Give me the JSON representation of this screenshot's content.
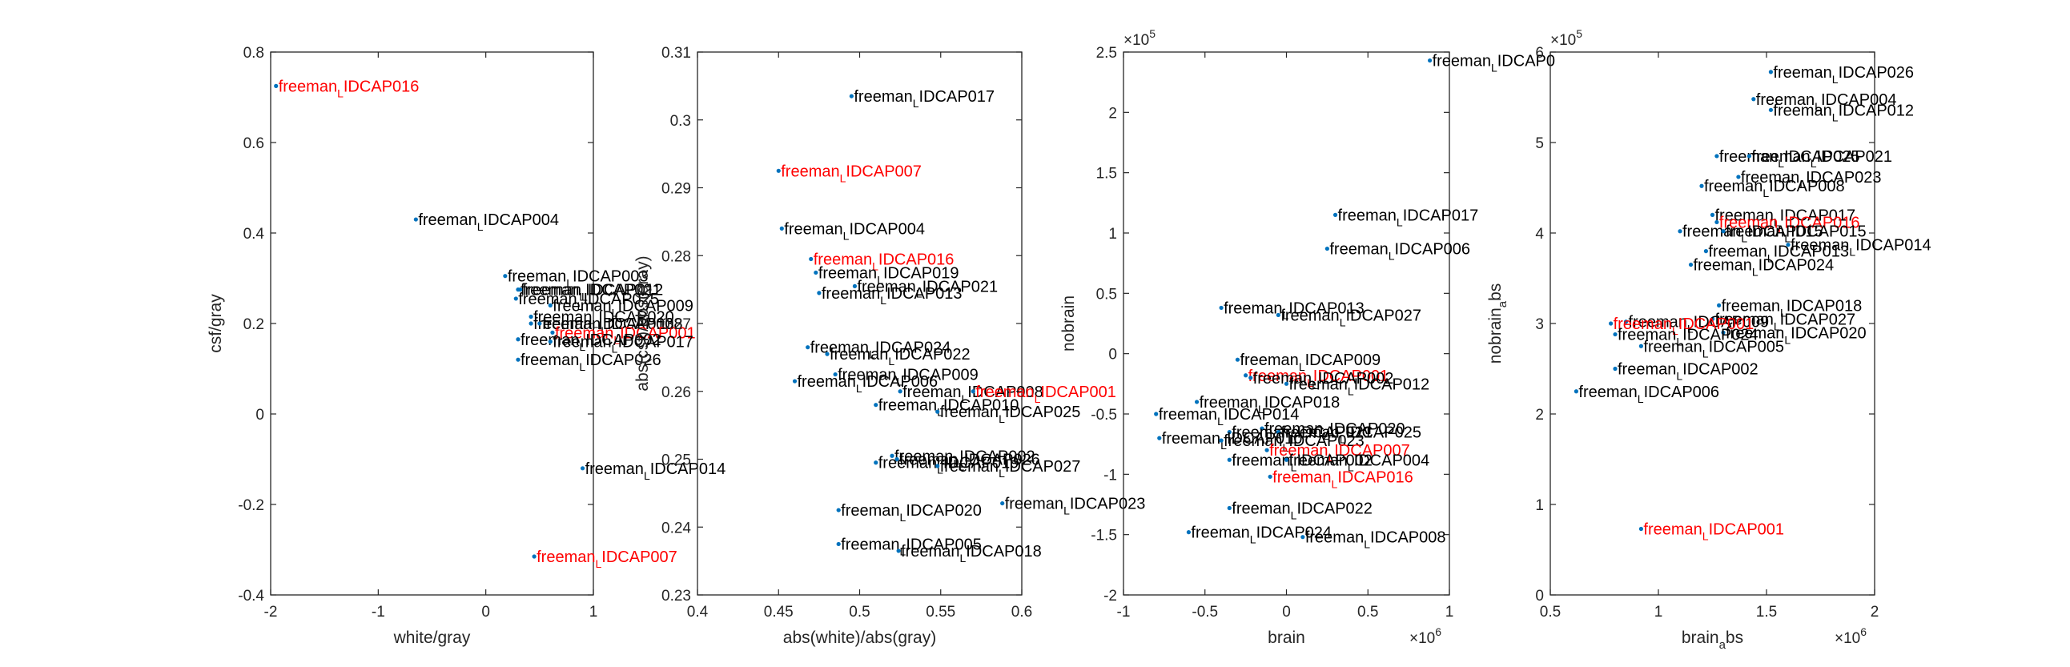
{
  "figure": {
    "panels": 4
  },
  "chart_data": [
    {
      "type": "scatter",
      "xlabel": "white/gray",
      "ylabel": "csf/gray",
      "xlim": [
        -2,
        1
      ],
      "ylim": [
        -0.4,
        0.8
      ],
      "xticks": [
        "-2",
        "-1",
        "0",
        "1"
      ],
      "yticks": [
        "-0.4",
        "-0.2",
        "0",
        "0.2",
        "0.4",
        "0.6",
        "0.8"
      ],
      "grid": false,
      "points": [
        {
          "x": -1.95,
          "y": 0.725,
          "label": "IDCAP016",
          "color": "#ff0000"
        },
        {
          "x": -0.65,
          "y": 0.43,
          "label": "IDCAP004",
          "color": "#000000"
        },
        {
          "x": 0.18,
          "y": 0.305,
          "label": "IDCAP003",
          "color": "#000000"
        },
        {
          "x": 0.3,
          "y": 0.275,
          "label": "IDCAP021",
          "color": "#000000"
        },
        {
          "x": 0.32,
          "y": 0.275,
          "label": "IDCAP012",
          "color": "#000000"
        },
        {
          "x": 0.28,
          "y": 0.255,
          "label": "IDCAP025",
          "color": "#000000"
        },
        {
          "x": 0.6,
          "y": 0.24,
          "label": "IDCAP009",
          "color": "#000000"
        },
        {
          "x": 0.42,
          "y": 0.215,
          "label": "IDCAP020",
          "color": "#000000"
        },
        {
          "x": 0.42,
          "y": 0.2,
          "label": "IDCAP013",
          "color": "#000000"
        },
        {
          "x": 0.5,
          "y": 0.2,
          "label": "IDCAP008",
          "color": "#000000"
        },
        {
          "x": 0.62,
          "y": 0.18,
          "label": "IDCAP001",
          "color": "#ff0000"
        },
        {
          "x": 0.3,
          "y": 0.165,
          "label": "IDCAP002",
          "color": "#000000"
        },
        {
          "x": 0.6,
          "y": 0.16,
          "label": "IDCAP017",
          "color": "#000000"
        },
        {
          "x": 0.3,
          "y": 0.12,
          "label": "IDCAP026",
          "color": "#000000"
        },
        {
          "x": 0.9,
          "y": -0.12,
          "label": "IDCAP014",
          "color": "#000000"
        },
        {
          "x": 0.45,
          "y": -0.315,
          "label": "IDCAP007",
          "color": "#ff0000"
        }
      ]
    },
    {
      "type": "scatter",
      "xlabel": "abs(white)/abs(gray)",
      "ylabel": "abs(csf)/abs(gray)",
      "xlim": [
        0.4,
        0.6
      ],
      "ylim": [
        0.23,
        0.31
      ],
      "xticks": [
        "0.4",
        "0.45",
        "0.5",
        "0.55",
        "0.6"
      ],
      "yticks": [
        "0.23",
        "0.24",
        "0.25",
        "0.26",
        "0.27",
        "0.28",
        "0.29",
        "0.3",
        "0.31"
      ],
      "grid": false,
      "points": [
        {
          "x": 0.495,
          "y": 0.3035,
          "label": "IDCAP017",
          "color": "#000000"
        },
        {
          "x": 0.45,
          "y": 0.2925,
          "label": "IDCAP007",
          "color": "#ff0000"
        },
        {
          "x": 0.452,
          "y": 0.284,
          "label": "IDCAP004",
          "color": "#000000"
        },
        {
          "x": 0.47,
          "y": 0.2795,
          "label": "IDCAP016",
          "color": "#ff0000"
        },
        {
          "x": 0.473,
          "y": 0.2775,
          "label": "IDCAP019",
          "color": "#000000"
        },
        {
          "x": 0.497,
          "y": 0.2755,
          "label": "IDCAP021",
          "color": "#000000"
        },
        {
          "x": 0.475,
          "y": 0.2745,
          "label": "IDCAP013",
          "color": "#000000"
        },
        {
          "x": 0.468,
          "y": 0.2665,
          "label": "IDCAP024",
          "color": "#000000"
        },
        {
          "x": 0.48,
          "y": 0.2655,
          "label": "IDCAP022",
          "color": "#000000"
        },
        {
          "x": 0.485,
          "y": 0.2625,
          "label": "IDCAP009",
          "color": "#000000"
        },
        {
          "x": 0.46,
          "y": 0.2615,
          "label": "IDCAP006",
          "color": "#000000"
        },
        {
          "x": 0.525,
          "y": 0.26,
          "label": "IDCAP008",
          "color": "#000000"
        },
        {
          "x": 0.57,
          "y": 0.26,
          "label": "IDCAP001",
          "color": "#ff0000"
        },
        {
          "x": 0.51,
          "y": 0.258,
          "label": "IDCAP010",
          "color": "#000000"
        },
        {
          "x": 0.548,
          "y": 0.257,
          "label": "IDCAP025",
          "color": "#000000"
        },
        {
          "x": 0.52,
          "y": 0.2505,
          "label": "IDCAP002",
          "color": "#000000"
        },
        {
          "x": 0.523,
          "y": 0.25,
          "label": "IDCAP026",
          "color": "#000000"
        },
        {
          "x": 0.51,
          "y": 0.2495,
          "label": "IDCAP019",
          "color": "#000000"
        },
        {
          "x": 0.548,
          "y": 0.249,
          "label": "IDCAP027",
          "color": "#000000"
        },
        {
          "x": 0.588,
          "y": 0.2435,
          "label": "IDCAP023",
          "color": "#000000"
        },
        {
          "x": 0.487,
          "y": 0.2425,
          "label": "IDCAP020",
          "color": "#000000"
        },
        {
          "x": 0.487,
          "y": 0.2375,
          "label": "IDCAP005",
          "color": "#000000"
        },
        {
          "x": 0.524,
          "y": 0.2365,
          "label": "IDCAP018",
          "color": "#000000"
        }
      ]
    },
    {
      "type": "scatter",
      "xlabel": "brain",
      "ylabel": "nobrain",
      "xlim": [
        -1,
        1
      ],
      "ylim": [
        -2,
        2.5
      ],
      "xticks": [
        "-1",
        "-0.5",
        "0",
        "0.5",
        "1"
      ],
      "yticks": [
        "-2",
        "-1.5",
        "-1",
        "-0.5",
        "0",
        "0.5",
        "1",
        "1.5",
        "2",
        "2.5"
      ],
      "x_exponent": "6",
      "y_exponent": "5",
      "grid": false,
      "points": [
        {
          "x": 0.88,
          "y": 2.43,
          "label": "IDCAP0",
          "color": "#000000"
        },
        {
          "x": 0.3,
          "y": 1.15,
          "label": "IDCAP017",
          "color": "#000000"
        },
        {
          "x": 0.25,
          "y": 0.87,
          "label": "IDCAP006",
          "color": "#000000"
        },
        {
          "x": -0.4,
          "y": 0.38,
          "label": "IDCAP013",
          "color": "#000000"
        },
        {
          "x": -0.05,
          "y": 0.32,
          "label": "IDCAP027",
          "color": "#000000"
        },
        {
          "x": -0.3,
          "y": -0.05,
          "label": "IDCAP009",
          "color": "#000000"
        },
        {
          "x": -0.25,
          "y": -0.18,
          "label": "IDCAP001",
          "color": "#ff0000"
        },
        {
          "x": -0.22,
          "y": -0.2,
          "label": "IDCAP002",
          "color": "#000000"
        },
        {
          "x": 0.0,
          "y": -0.25,
          "label": "IDCAP012",
          "color": "#000000"
        },
        {
          "x": -0.55,
          "y": -0.4,
          "label": "IDCAP018",
          "color": "#000000"
        },
        {
          "x": -0.8,
          "y": -0.5,
          "label": "IDCAP014",
          "color": "#000000"
        },
        {
          "x": -0.15,
          "y": -0.62,
          "label": "IDCAP020",
          "color": "#000000"
        },
        {
          "x": -0.35,
          "y": -0.65,
          "label": "IDCAP021",
          "color": "#000000"
        },
        {
          "x": -0.05,
          "y": -0.65,
          "label": "IDCAP025",
          "color": "#000000"
        },
        {
          "x": -0.78,
          "y": -0.7,
          "label": "IDCAP010",
          "color": "#000000"
        },
        {
          "x": -0.4,
          "y": -0.72,
          "label": "IDCAP023",
          "color": "#000000"
        },
        {
          "x": -0.12,
          "y": -0.8,
          "label": "IDCAP007",
          "color": "#ff0000"
        },
        {
          "x": -0.35,
          "y": -0.88,
          "label": "IDCAP002",
          "color": "#000000"
        },
        {
          "x": 0.0,
          "y": -0.88,
          "label": "IDCAP004",
          "color": "#000000"
        },
        {
          "x": -0.1,
          "y": -1.02,
          "label": "IDCAP016",
          "color": "#ff0000"
        },
        {
          "x": -0.35,
          "y": -1.28,
          "label": "IDCAP022",
          "color": "#000000"
        },
        {
          "x": -0.6,
          "y": -1.48,
          "label": "IDCAP024",
          "color": "#000000"
        },
        {
          "x": 0.1,
          "y": -1.52,
          "label": "IDCAP008",
          "color": "#000000"
        }
      ]
    },
    {
      "type": "scatter",
      "xlabel": "brain_abs",
      "ylabel": "nobrain_abs",
      "xlim": [
        0.5,
        2
      ],
      "ylim": [
        0,
        6
      ],
      "xticks": [
        "0.5",
        "1",
        "1.5",
        "2"
      ],
      "yticks": [
        "0",
        "1",
        "2",
        "3",
        "4",
        "5",
        "6"
      ],
      "x_exponent": "6",
      "y_exponent": "5",
      "grid": false,
      "points": [
        {
          "x": 1.52,
          "y": 5.78,
          "label": "IDCAP026",
          "color": "#000000"
        },
        {
          "x": 1.44,
          "y": 5.48,
          "label": "IDCAP004",
          "color": "#000000"
        },
        {
          "x": 1.52,
          "y": 5.36,
          "label": "IDCAP012",
          "color": "#000000"
        },
        {
          "x": 1.27,
          "y": 4.85,
          "label": "IDCAP025",
          "color": "#000000"
        },
        {
          "x": 1.42,
          "y": 4.85,
          "label": "IDCAP021",
          "color": "#000000"
        },
        {
          "x": 1.37,
          "y": 4.62,
          "label": "IDCAP023",
          "color": "#000000"
        },
        {
          "x": 1.2,
          "y": 4.52,
          "label": "IDCAP008",
          "color": "#000000"
        },
        {
          "x": 1.25,
          "y": 4.2,
          "label": "IDCAP017",
          "color": "#000000"
        },
        {
          "x": 1.27,
          "y": 4.12,
          "label": "IDCAP016",
          "color": "#ff0000"
        },
        {
          "x": 1.1,
          "y": 4.02,
          "label": "IDCAP015",
          "color": "#000000"
        },
        {
          "x": 1.3,
          "y": 4.02,
          "label": "IDCAP015",
          "color": "#000000"
        },
        {
          "x": 1.6,
          "y": 3.87,
          "label": "IDCAP014",
          "color": "#000000"
        },
        {
          "x": 1.22,
          "y": 3.8,
          "label": "IDCAP013",
          "color": "#000000"
        },
        {
          "x": 1.15,
          "y": 3.65,
          "label": "IDCAP024",
          "color": "#000000"
        },
        {
          "x": 1.28,
          "y": 3.2,
          "label": "IDCAP018",
          "color": "#000000"
        },
        {
          "x": 1.25,
          "y": 3.05,
          "label": "IDCAP027",
          "color": "#000000"
        },
        {
          "x": 0.85,
          "y": 3.02,
          "label": "IDCAP009",
          "color": "#000000"
        },
        {
          "x": 0.78,
          "y": 3.0,
          "label": "IDCAP001",
          "color": "#ff0000"
        },
        {
          "x": 1.3,
          "y": 2.9,
          "label": "IDCAP020",
          "color": "#000000"
        },
        {
          "x": 0.8,
          "y": 2.88,
          "label": "IDCAP024",
          "color": "#000000"
        },
        {
          "x": 0.92,
          "y": 2.75,
          "label": "IDCAP005",
          "color": "#000000"
        },
        {
          "x": 0.8,
          "y": 2.5,
          "label": "IDCAP002",
          "color": "#000000"
        },
        {
          "x": 0.62,
          "y": 2.25,
          "label": "IDCAP006",
          "color": "#000000"
        },
        {
          "x": 0.92,
          "y": 0.73,
          "label": "IDCAP001",
          "color": "#ff0000"
        }
      ]
    }
  ]
}
